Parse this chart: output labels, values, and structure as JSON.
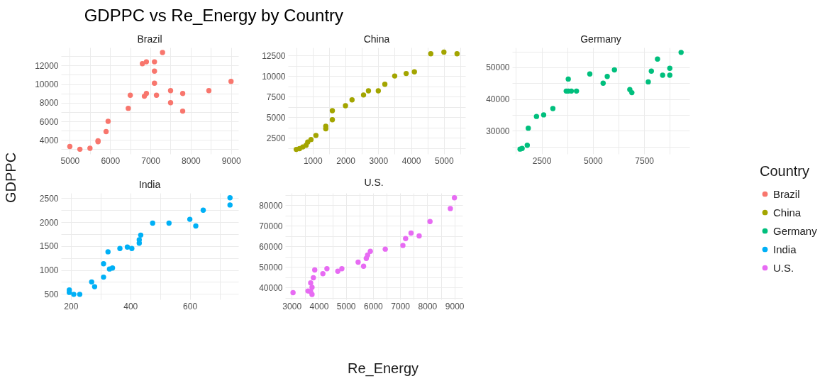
{
  "chart_data": [
    {
      "type": "scatter",
      "title": "Brazil",
      "annotations": [
        "GDPPC vs Re_Energy by Country"
      ],
      "ylabel": "GDPPC",
      "legend_title": "Country",
      "legend": "right",
      "grid": true,
      "marker": "circle",
      "xlim": [
        4781,
        9181
      ],
      "ylim": [
        2493,
        13933
      ],
      "xticks": [
        5000,
        {
          "value": 5500,
          "label": null
        },
        6000,
        {
          "value": 6500,
          "label": null
        },
        7000,
        {
          "value": 7500,
          "label": null
        },
        8000,
        {
          "value": 8500,
          "label": null
        },
        9000
      ],
      "yticks": [
        {
          "value": 3000,
          "label": null
        },
        4000,
        {
          "value": 5000,
          "label": null
        },
        6000,
        {
          "value": 7000,
          "label": null
        },
        8000,
        {
          "value": 9000,
          "label": null
        },
        10000,
        {
          "value": 11000,
          "label": null
        },
        12000,
        {
          "value": 13000,
          "label": null
        }
      ],
      "series": [
        {
          "name": "Brazil",
          "color": "#f8766d",
          "x": [
            5000,
            5250,
            5500,
            5700,
            5700,
            5900,
            5950,
            6450,
            6500,
            6850,
            6900,
            6800,
            6900,
            7100,
            7300,
            7100,
            7100,
            7150,
            7500,
            7500,
            7800,
            7800,
            8450,
            9000
          ],
          "values": [
            3300,
            3000,
            3100,
            3800,
            3900,
            4900,
            6000,
            7400,
            8800,
            8700,
            9000,
            12200,
            12400,
            12400,
            13400,
            11400,
            10100,
            8800,
            9300,
            8000,
            9000,
            7100,
            9300,
            10300
          ]
        }
      ]
    },
    {
      "type": "scatter",
      "title": "China",
      "legend": "right",
      "grid": true,
      "marker": "circle",
      "xlim": [
        248,
        5652
      ],
      "ylim": [
        550,
        13449
      ],
      "xticks": [
        {
          "value": 500,
          "label": null
        },
        1000,
        {
          "value": 1500,
          "label": null
        },
        2000,
        {
          "value": 2500,
          "label": null
        },
        3000,
        {
          "value": 3500,
          "label": null
        },
        4000,
        {
          "value": 4500,
          "label": null
        },
        5000,
        {
          "value": 5500,
          "label": null
        }
      ],
      "yticks": [
        {
          "value": 1250,
          "label": null
        },
        2500,
        {
          "value": 3750,
          "label": null
        },
        5000,
        {
          "value": 6250,
          "label": null
        },
        7500,
        {
          "value": 8750,
          "label": null
        },
        10000,
        {
          "value": 11250,
          "label": null
        },
        12500
      ],
      "series": [
        {
          "name": "China",
          "color": "#a3a500",
          "x": [
            500,
            600,
            700,
            800,
            850,
            950,
            1100,
            1400,
            1400,
            1600,
            1600,
            2000,
            2200,
            2550,
            2700,
            3000,
            3200,
            3500,
            3850,
            4100,
            4600,
            5000,
            5400
          ],
          "values": [
            1100,
            1200,
            1400,
            1600,
            2000,
            2300,
            2800,
            3600,
            3900,
            4700,
            5800,
            6400,
            7100,
            7700,
            8200,
            8200,
            9000,
            10000,
            10300,
            10500,
            12700,
            12900,
            12700
          ]
        }
      ]
    },
    {
      "type": "scatter",
      "title": "Germany",
      "legend": "right",
      "grid": true,
      "marker": "circle",
      "xlim": [
        1063,
        9708
      ],
      "ylim": [
        22670,
        56232
      ],
      "xticks": [
        {
          "value": 1250,
          "label": null
        },
        2500,
        {
          "value": 3750,
          "label": null
        },
        5000,
        {
          "value": 6250,
          "label": null
        },
        7500,
        {
          "value": 8750,
          "label": null
        }
      ],
      "yticks": [
        {
          "value": 25000,
          "label": null
        },
        30000,
        {
          "value": 35000,
          "label": null
        },
        40000,
        {
          "value": 45000,
          "label": null
        },
        50000,
        {
          "value": 55000,
          "label": null
        }
      ],
      "series": [
        {
          "name": "Germany",
          "color": "#00bf7d",
          "x": [
            1450,
            1550,
            1800,
            1850,
            2250,
            2600,
            3050,
            3700,
            3800,
            3950,
            4200,
            3800,
            4850,
            5500,
            5700,
            6050,
            6800,
            6900,
            7700,
            7850,
            8150,
            8400,
            8750,
            8750,
            9300
          ],
          "values": [
            24200,
            24400,
            25400,
            30800,
            34500,
            35000,
            37000,
            42500,
            42500,
            42500,
            42500,
            46300,
            47900,
            45000,
            47100,
            49200,
            43000,
            42000,
            45400,
            48800,
            52600,
            47500,
            47500,
            49700,
            54700
          ]
        }
      ]
    },
    {
      "type": "scatter",
      "title": "India",
      "legend": "right",
      "grid": true,
      "marker": "circle",
      "xlim": [
        167,
        763
      ],
      "ylim": [
        384,
        2611
      ],
      "xticks": [
        200,
        {
          "value": 300,
          "label": null
        },
        400,
        {
          "value": 500,
          "label": null
        },
        600,
        {
          "value": 700,
          "label": null
        }
      ],
      "yticks": [
        500,
        {
          "value": 750,
          "label": null
        },
        1000,
        {
          "value": 1250,
          "label": null
        },
        1500,
        {
          "value": 1750,
          "label": null
        },
        2000,
        {
          "value": 2250,
          "label": null
        },
        2500
      ],
      "series": [
        {
          "name": "India",
          "color": "#00b0f6",
          "x": [
            195,
            195,
            210,
            230,
            270,
            280,
            310,
            310,
            325,
            330,
            340,
            365,
            390,
            405,
            430,
            430,
            435,
            475,
            530,
            600,
            620,
            645,
            735,
            735
          ],
          "values": [
            580,
            530,
            490,
            490,
            750,
            650,
            850,
            1130,
            1380,
            1020,
            1040,
            1450,
            1480,
            1450,
            1560,
            1630,
            1730,
            1980,
            1980,
            2060,
            1920,
            2250,
            2510,
            2360
          ]
        }
      ]
    },
    {
      "type": "scatter",
      "title": "U.S.",
      "xlabel": "Re_Energy",
      "legend": "right",
      "grid": true,
      "marker": "circle",
      "xlim": [
        2759,
        9297
      ],
      "ylim": [
        34311,
        85928
      ],
      "xticks": [
        3000,
        {
          "value": 3500,
          "label": null
        },
        4000,
        {
          "value": 4500,
          "label": null
        },
        5000,
        {
          "value": 5500,
          "label": null
        },
        6000,
        {
          "value": 6500,
          "label": null
        },
        7000,
        {
          "value": 7500,
          "label": null
        },
        8000,
        {
          "value": 8500,
          "label": null
        },
        9000
      ],
      "yticks": [
        {
          "value": 35000,
          "label": null
        },
        40000,
        {
          "value": 45000,
          "label": null
        },
        50000,
        {
          "value": 55000,
          "label": null
        },
        60000,
        {
          "value": 65000,
          "label": null
        },
        70000,
        {
          "value": 75000,
          "label": null
        },
        80000,
        {
          "value": 85000,
          "label": null
        }
      ],
      "series": [
        {
          "name": "U.S.",
          "color": "#e76bf3",
          "x": [
            3050,
            3600,
            3700,
            3750,
            3750,
            3700,
            3800,
            3850,
            4150,
            4300,
            4700,
            4850,
            5450,
            5650,
            5750,
            5800,
            5900,
            6450,
            7100,
            7200,
            7400,
            7700,
            8100,
            8850,
            9000
          ],
          "values": [
            37600,
            38400,
            38100,
            36700,
            40200,
            42300,
            44800,
            48600,
            46800,
            49200,
            48000,
            49200,
            52400,
            50400,
            54200,
            55800,
            57600,
            58700,
            60500,
            63800,
            66500,
            65100,
            72100,
            78400,
            83600
          ]
        }
      ]
    }
  ]
}
